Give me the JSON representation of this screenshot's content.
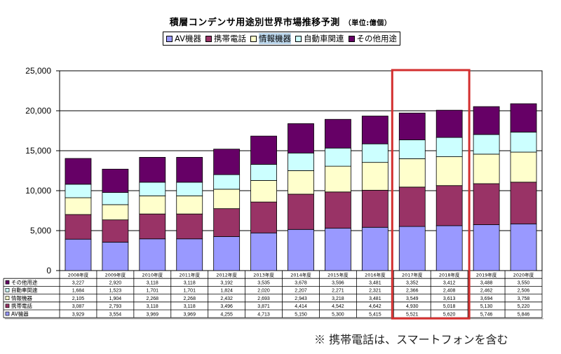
{
  "chart_data": {
    "type": "bar",
    "stacked": true,
    "title": "積層コンデンサ用途別世界市場推移予測",
    "unit_label": "（単位:億個）",
    "xlabel": "",
    "ylabel": "",
    "ylim": [
      0,
      25000
    ],
    "yticks": [
      0,
      5000,
      10000,
      15000,
      20000,
      25000
    ],
    "ytick_labels": [
      "0",
      "5,000",
      "10,000",
      "15,000",
      "20,000",
      "25,000"
    ],
    "grid": true,
    "legend_position": "top-center",
    "categories": [
      "2008年度",
      "2009年度",
      "2010年度",
      "2011年度",
      "2012年度",
      "2013年度",
      "2014年度",
      "2015年度",
      "2016年度",
      "2017年度",
      "2018年度",
      "2019年度",
      "2020年度"
    ],
    "series": [
      {
        "name": "AV機器",
        "color": "#9999ff",
        "values": [
          3929,
          3554,
          3969,
          3969,
          4255,
          4713,
          5150,
          5300,
          5415,
          5521,
          5620,
          5746,
          5846
        ]
      },
      {
        "name": "携帯電話",
        "color": "#993366",
        "values": [
          3087,
          2793,
          3118,
          3118,
          3496,
          3871,
          4414,
          4542,
          4642,
          4930,
          5018,
          5130,
          5220
        ]
      },
      {
        "name": "情報機器",
        "color": "#ffffcc",
        "values": [
          2105,
          1904,
          2268,
          2268,
          2432,
          2693,
          2943,
          3218,
          3481,
          3549,
          3613,
          3694,
          3758
        ]
      },
      {
        "name": "自動車関連",
        "color": "#ccffff",
        "values": [
          1684,
          1523,
          1701,
          1701,
          1824,
          2020,
          2207,
          2271,
          2321,
          2366,
          2408,
          2462,
          2506
        ]
      },
      {
        "name": "その他用途",
        "color": "#660066",
        "values": [
          3227,
          2920,
          3118,
          3118,
          3192,
          3535,
          3678,
          3596,
          3481,
          3352,
          3412,
          3488,
          3550
        ]
      }
    ],
    "table_row_order": [
      "その他用途",
      "自動車関連",
      "情報機器",
      "携帯電話",
      "AV機器"
    ],
    "table_cells": {
      "その他用途": [
        "3,227",
        "2,920",
        "3,118",
        "3,118",
        "3,192",
        "3,535",
        "3,678",
        "3,596",
        "3,481",
        "3,352",
        "3,412",
        "3,488",
        "3,550"
      ],
      "自動車関連": [
        "1,684",
        "1,523",
        "1,701",
        "1,701",
        "1,824",
        "2,020",
        "2,207",
        "2,271",
        "2,321",
        "2,366",
        "2,408",
        "2,462",
        "2,506"
      ],
      "情報機器": [
        "2,105",
        "1,904",
        "2,268",
        "2,268",
        "2,432",
        "2,693",
        "2,943",
        "3,218",
        "3,481",
        "3,549",
        "3,613",
        "3,694",
        "3,758"
      ],
      "携帯電話": [
        "3,087",
        "2,793",
        "3,118",
        "3,118",
        "3,496",
        "3,871",
        "4,414",
        "4,542",
        "4,642",
        "4,930",
        "5,018",
        "5,130",
        "5,220"
      ],
      "AV機器": [
        "3,929",
        "3,554",
        "3,969",
        "3,969",
        "4,255",
        "4,713",
        "5,150",
        "5,300",
        "5,415",
        "5,521",
        "5,620",
        "5,746",
        "5,846"
      ]
    },
    "highlight": {
      "categories": [
        "2017年度",
        "2018年度"
      ],
      "color": "#d32f2f"
    },
    "annotations": [
      "※ 携帯電話は、スマートフォンを含む"
    ]
  },
  "legend": {
    "items": [
      {
        "label": "AV機器",
        "color": "#9999ff",
        "highlighted": false
      },
      {
        "label": "携帯電話",
        "color": "#993366",
        "highlighted": false
      },
      {
        "label": "情報機器",
        "color": "#ffffcc",
        "highlighted": true
      },
      {
        "label": "自動車関連",
        "color": "#ccffff",
        "highlighted": false
      },
      {
        "label": "その他用途",
        "color": "#660066",
        "highlighted": false
      }
    ]
  },
  "footnote": "※ 携帯電話は、スマートフォンを含む"
}
